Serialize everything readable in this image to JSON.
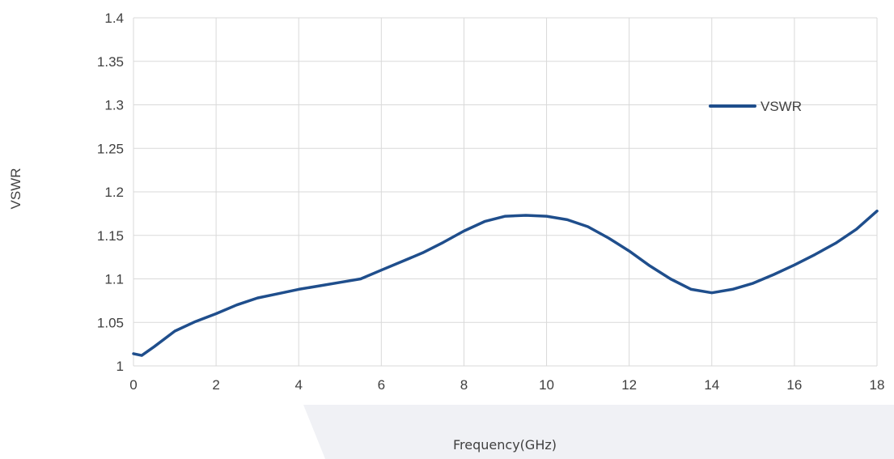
{
  "chart_data": {
    "type": "line",
    "title": "",
    "xlabel": "Frequency(GHz)",
    "ylabel": "VSWR",
    "xlim": [
      0,
      18
    ],
    "ylim": [
      1,
      1.4
    ],
    "x_ticks": [
      "0",
      "2",
      "4",
      "6",
      "8",
      "10",
      "12",
      "14",
      "16",
      "18"
    ],
    "y_ticks": [
      "1",
      "1.05",
      "1.1",
      "1.15",
      "1.2",
      "1.25",
      "1.3",
      "1.35",
      "1.4"
    ],
    "grid": true,
    "legend_position": "top-right",
    "series": [
      {
        "name": "VSWR",
        "color": "#1f4e8c",
        "x": [
          0,
          0.2,
          0.5,
          1,
          1.5,
          2,
          2.5,
          3,
          3.5,
          4,
          4.5,
          5,
          5.5,
          6,
          6.5,
          7,
          7.5,
          8,
          8.5,
          9,
          9.5,
          10,
          10.5,
          11,
          11.5,
          12,
          12.5,
          13,
          13.5,
          14,
          14.5,
          15,
          15.5,
          16,
          16.5,
          17,
          17.5,
          18
        ],
        "y": [
          1.014,
          1.012,
          1.022,
          1.04,
          1.051,
          1.06,
          1.07,
          1.078,
          1.083,
          1.088,
          1.092,
          1.096,
          1.1,
          1.11,
          1.12,
          1.13,
          1.142,
          1.155,
          1.166,
          1.172,
          1.173,
          1.172,
          1.168,
          1.16,
          1.147,
          1.132,
          1.115,
          1.1,
          1.088,
          1.084,
          1.088,
          1.095,
          1.105,
          1.116,
          1.128,
          1.141,
          1.157,
          1.178
        ]
      }
    ]
  }
}
